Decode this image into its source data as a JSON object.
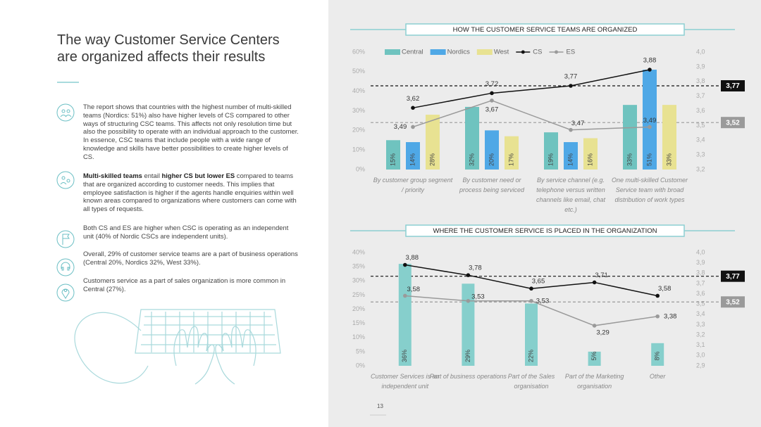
{
  "title": "The way Customer Service Centers are organized affects their results",
  "paragraphs": [
    [
      {
        "text": "The report shows that countries with the highest number of multi-skilled teams (Nordics: 51%) also have higher levels of CS compared to other ways of structuring CSC teams. This affects not only resolution time but also the possibility to operate with an individual approach to the customer. In essence, CSC teams that include people with a wide range of knowledge and skills have better possibilities to create higher levels of CS."
      }
    ],
    [
      {
        "text": "Multi-skilled teams",
        "bold": true
      },
      {
        "text": " entail "
      },
      {
        "text": "higher CS but lower ES",
        "bold": true
      },
      {
        "text": " compared to teams that are organized according to customer needs. This implies that employee satisfaction is higher if the agents handle enquiries within well known areas compared to organizations where customers can come with all types of requests."
      }
    ],
    [
      {
        "text": "Both CS and ES are higher when CSC is operating as an independent unit (40% of Nordic CSCs are independent units)."
      }
    ],
    [
      {
        "text": "Overall, 29% of customer service teams are a part of business operations (Central 20%, Nordics 32%, West 33%)."
      }
    ],
    [
      {
        "text": "Customers service as a part of sales organization is more common in Central (27%)."
      }
    ]
  ],
  "page_number": "13",
  "chart_data": [
    {
      "type": "bar",
      "title": "HOW THE CUSTOMER SERVICE TEAMS ARE ORGANIZED",
      "categories": [
        "By customer group segment / priority",
        "By customer need or process being serviced",
        "By service channel (e.g. telephone versus written channels like email, chat etc.)",
        "One multi-skilled Customer Service team with broad distribution of work types"
      ],
      "series": [
        {
          "name": "Central",
          "color": "#6fc3bf",
          "values": [
            15,
            32,
            19,
            33
          ],
          "value_labels": [
            "15%",
            "32%",
            "19%",
            "33%"
          ]
        },
        {
          "name": "Nordics",
          "color": "#4fa8e6",
          "values": [
            14,
            20,
            14,
            51
          ],
          "value_labels": [
            "14%",
            "20%",
            "14%",
            "51%"
          ]
        },
        {
          "name": "West",
          "color": "#e8e292",
          "values": [
            28,
            17,
            16,
            33
          ],
          "value_labels": [
            "28%",
            "17%",
            "16%",
            "33%"
          ]
        },
        {
          "name": "CS",
          "color": "#111111",
          "axis": "y2",
          "values": [
            3.62,
            3.72,
            3.77,
            3.88
          ],
          "value_labels": [
            "3,62",
            "3,72",
            "3,77",
            "3,88"
          ]
        },
        {
          "name": "ES",
          "color": "#9a9a9a",
          "axis": "y2",
          "values": [
            3.49,
            3.67,
            3.47,
            3.49
          ],
          "value_labels": [
            "3,49",
            "3,67",
            "3,47",
            "3,49"
          ]
        }
      ],
      "ylim": [
        0,
        60
      ],
      "yticks": [
        {
          "value": 0,
          "label": "0%"
        },
        {
          "value": 10,
          "label": "10%"
        },
        {
          "value": 20,
          "label": "20%"
        },
        {
          "value": 30,
          "label": "30%"
        },
        {
          "value": 40,
          "label": "40%"
        },
        {
          "value": 50,
          "label": "50%"
        },
        {
          "value": 60,
          "label": "60%"
        }
      ],
      "y2lim": [
        3.2,
        4.0
      ],
      "y2ticks": [
        {
          "value": 3.2,
          "label": "3,2"
        },
        {
          "value": 3.3,
          "label": "3,3"
        },
        {
          "value": 3.4,
          "label": "3,4"
        },
        {
          "value": 3.5,
          "label": "3,5"
        },
        {
          "value": 3.6,
          "label": "3,6"
        },
        {
          "value": 3.7,
          "label": "3,7"
        },
        {
          "value": 3.8,
          "label": "3,8"
        },
        {
          "value": 3.9,
          "label": "3,9"
        },
        {
          "value": 4.0,
          "label": "4,0"
        }
      ],
      "reference_lines": [
        {
          "value": 3.77,
          "label": "3,77",
          "color": "#111111"
        },
        {
          "value": 3.52,
          "label": "3,52",
          "color": "#9a9a9a"
        }
      ]
    },
    {
      "type": "bar",
      "title": "WHERE THE CUSTOMER SERVICE IS PLACED IN THE ORGANIZATION",
      "categories": [
        "Customer Services is an independent unit",
        "Part of business operations",
        "Part of the Sales organisation",
        "Part of the Marketing organisation",
        "Other"
      ],
      "series": [
        {
          "color": "#86cfcc",
          "values": [
            36,
            29,
            22,
            5,
            8
          ],
          "value_labels": [
            "36%",
            "29%",
            "22%",
            "5%",
            "8%"
          ]
        },
        {
          "color": "#111111",
          "axis": "y2",
          "values": [
            3.88,
            3.78,
            3.65,
            3.71,
            3.58
          ],
          "value_labels": [
            "3,88",
            "3,78",
            "3,65",
            "3,71",
            "3,58"
          ]
        },
        {
          "color": "#9a9a9a",
          "axis": "y2",
          "values": [
            3.58,
            3.53,
            3.53,
            3.29,
            3.38
          ],
          "value_labels": [
            "3,58",
            "3,53",
            "3,53",
            "3,29",
            "3,38"
          ]
        }
      ],
      "ylim": [
        0,
        40
      ],
      "yticks": [
        {
          "value": 0,
          "label": "0%"
        },
        {
          "value": 5,
          "label": "5%"
        },
        {
          "value": 10,
          "label": "10%"
        },
        {
          "value": 15,
          "label": "15%"
        },
        {
          "value": 20,
          "label": "20%"
        },
        {
          "value": 25,
          "label": "25%"
        },
        {
          "value": 30,
          "label": "30%"
        },
        {
          "value": 35,
          "label": "35%"
        },
        {
          "value": 40,
          "label": "40%"
        }
      ],
      "y2lim": [
        2.9,
        4.0
      ],
      "y2ticks": [
        {
          "value": 2.9,
          "label": "2,9"
        },
        {
          "value": 3.0,
          "label": "3,0"
        },
        {
          "value": 3.1,
          "label": "3,1"
        },
        {
          "value": 3.2,
          "label": "3,2"
        },
        {
          "value": 3.3,
          "label": "3,3"
        },
        {
          "value": 3.4,
          "label": "3,4"
        },
        {
          "value": 3.5,
          "label": "3,5"
        },
        {
          "value": 3.6,
          "label": "3,6"
        },
        {
          "value": 3.7,
          "label": "3,7"
        },
        {
          "value": 3.8,
          "label": "3,8"
        },
        {
          "value": 3.9,
          "label": "3,9"
        },
        {
          "value": 4.0,
          "label": "4,0"
        }
      ],
      "reference_lines": [
        {
          "value": 3.77,
          "label": "3,77",
          "color": "#111111"
        },
        {
          "value": 3.52,
          "label": "3,52",
          "color": "#9a9a9a"
        }
      ]
    }
  ]
}
